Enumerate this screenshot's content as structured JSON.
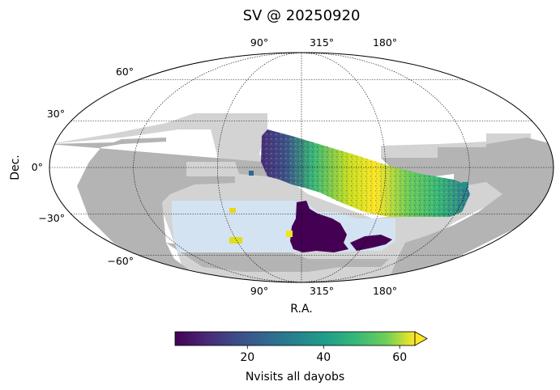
{
  "chart_data": {
    "type": "heatmap",
    "projection": "mollweide",
    "title": "SV @ 20250920",
    "xlabel": "R.A.",
    "ylabel": "Dec.",
    "ra_tick_labels": [
      "90°",
      "315°",
      "180°"
    ],
    "dec_tick_labels": [
      "60°",
      "30°",
      "0°",
      "−30°",
      "−60°"
    ],
    "dec_lines": [
      60,
      30,
      0,
      -30,
      -60
    ],
    "ra_lines_offset": [
      -120,
      -60,
      0,
      60,
      120
    ],
    "colorbar": {
      "label": "Nvisits all dayobs",
      "ticks": [
        20,
        40,
        60
      ],
      "range": [
        1,
        64
      ],
      "extend": "max",
      "colormap": "viridis"
    },
    "grid": true,
    "regions": [
      {
        "name": "footprint-low",
        "color": "#d3d3d3"
      },
      {
        "name": "footprint-mid",
        "color": "#b4b4b4"
      },
      {
        "name": "footprint-deep",
        "color": "#d4e3f1"
      }
    ]
  }
}
